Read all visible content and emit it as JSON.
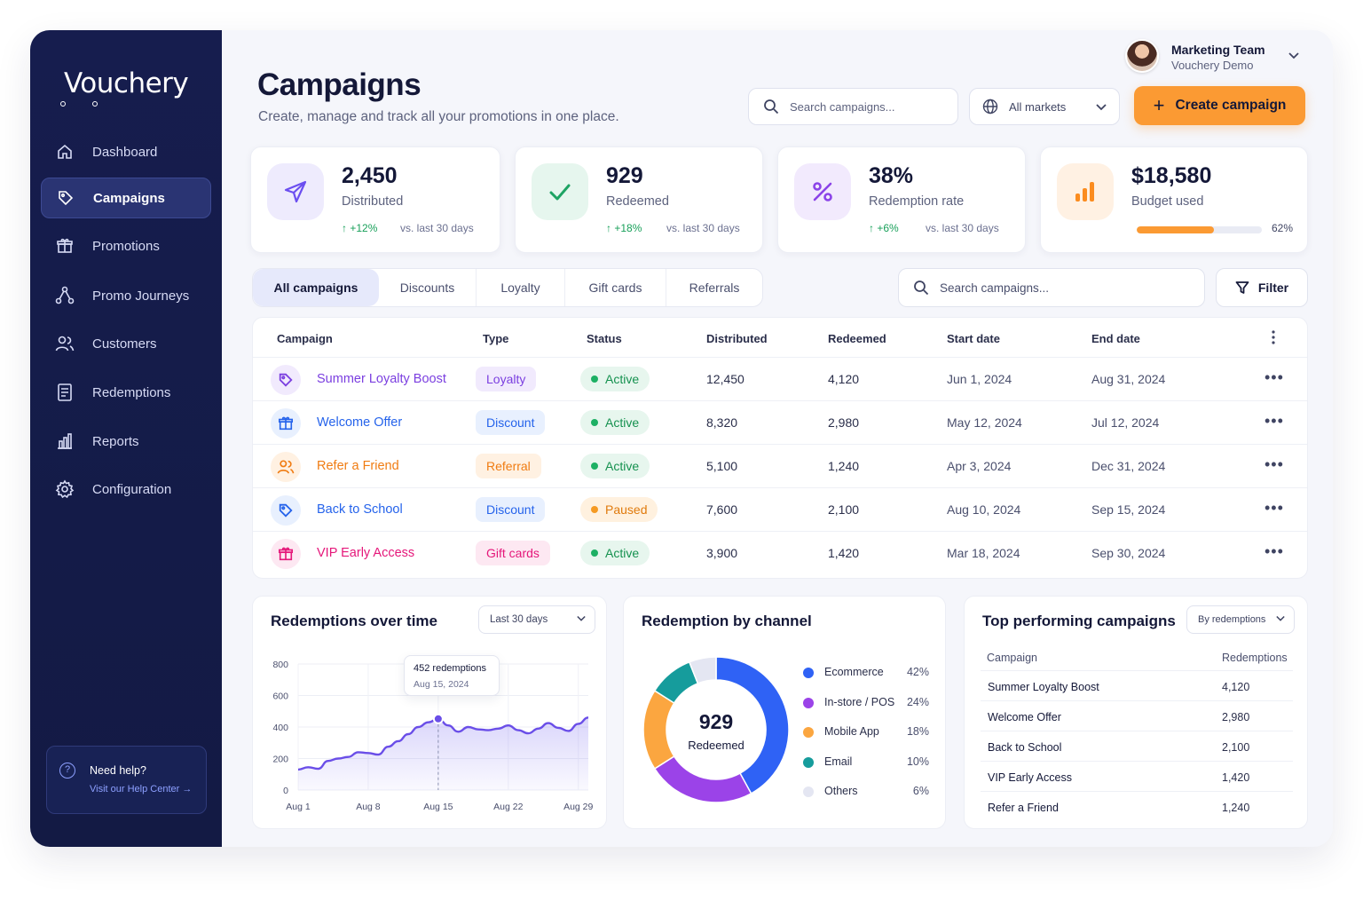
{
  "brand": {
    "name": "Vouchery"
  },
  "sidebar": {
    "items": [
      {
        "label": "Dashboard",
        "icon": "home-icon"
      },
      {
        "label": "Campaigns",
        "icon": "tag-icon",
        "active": true
      },
      {
        "label": "Promotions",
        "icon": "gift-icon"
      },
      {
        "label": "Promo Journeys",
        "icon": "journey-icon"
      },
      {
        "label": "Customers",
        "icon": "users-icon"
      },
      {
        "label": "Redemptions",
        "icon": "receipt-icon"
      },
      {
        "label": "Reports",
        "icon": "bar-chart-icon"
      },
      {
        "label": "Configuration",
        "icon": "gear-icon"
      }
    ],
    "help": {
      "title": "Need help?",
      "link": "Visit our Help Center →"
    }
  },
  "header": {
    "title": "Campaigns",
    "subtitle": "Create, manage and track all your promotions in one place.",
    "search_placeholder": "Search campaigns...",
    "markets": "All markets",
    "create_label": "Create campaign",
    "user": {
      "name": "Marketing Team",
      "org": "Vouchery Demo"
    }
  },
  "kpis": [
    {
      "value": "2,450",
      "label": "Distributed",
      "delta": "+12%",
      "vs": "vs. last 30 days",
      "icon": "send-icon",
      "color": "#6b4ef0",
      "bg": "#eeebfd"
    },
    {
      "value": "929",
      "label": "Redeemed",
      "delta": "+18%",
      "vs": "vs. last 30 days",
      "icon": "check-icon",
      "color": "#1ea363",
      "bg": "#e6f6ee"
    },
    {
      "value": "38%",
      "label": "Redemption rate",
      "delta": "+6%",
      "vs": "vs. last 30 days",
      "icon": "percent-icon",
      "color": "#8b43e8",
      "bg": "#f2eafd"
    },
    {
      "value": "$18,580",
      "label": "Budget used",
      "progress": 0.62,
      "pct": "62%",
      "icon": "bars-icon",
      "color": "#fb8c1f",
      "bg": "#fff1e3"
    }
  ],
  "tabs": [
    "All campaigns",
    "Discounts",
    "Loyalty",
    "Gift cards",
    "Referrals"
  ],
  "table_search_placeholder": "Search campaigns...",
  "filter_label": "Filter",
  "table": {
    "columns": [
      "Campaign",
      "Type",
      "Status",
      "Distributed",
      "Redeemed",
      "Start date",
      "End date"
    ],
    "rows": [
      {
        "name": "Summer Loyalty Boost",
        "type": "Loyalty",
        "status": "Active",
        "distributed": "12,450",
        "redeemed": "4,120",
        "start": "Jun 1, 2024",
        "end": "Aug 31, 2024",
        "icon": "tag-icon",
        "color": "#7b3fe0",
        "tint": "#f1eafd"
      },
      {
        "name": "Welcome Offer",
        "type": "Discount",
        "status": "Active",
        "distributed": "8,320",
        "redeemed": "2,980",
        "start": "May 12, 2024",
        "end": "Jul 12, 2024",
        "icon": "gift-icon",
        "color": "#2563eb",
        "tint": "#e8f0fe"
      },
      {
        "name": "Refer a Friend",
        "type": "Referral",
        "status": "Active",
        "distributed": "5,100",
        "redeemed": "1,240",
        "start": "Apr 3, 2024",
        "end": "Dec 31, 2024",
        "icon": "users-icon",
        "color": "#f07c12",
        "tint": "#fff1e2"
      },
      {
        "name": "Back to School",
        "type": "Discount",
        "status": "Paused",
        "distributed": "7,600",
        "redeemed": "2,100",
        "start": "Aug 10, 2024",
        "end": "Sep 15, 2024",
        "icon": "tag-icon",
        "color": "#2563eb",
        "tint": "#e8f0fe"
      },
      {
        "name": "VIP Early Access",
        "type": "Gift cards",
        "status": "Active",
        "distributed": "3,900",
        "redeemed": "1,420",
        "start": "Mar 18, 2024",
        "end": "Sep 30, 2024",
        "icon": "gift-icon",
        "color": "#e5177a",
        "tint": "#fde8f2"
      }
    ]
  },
  "status_colors": {
    "Active": {
      "fg": "#15914f",
      "bg": "#e7f6ee",
      "dot": "#1db064"
    },
    "Paused": {
      "fg": "#e07a0c",
      "bg": "#fff1df",
      "dot": "#f59a23"
    }
  },
  "redemptions_over_time": {
    "title": "Redemptions over time",
    "range": "Last 30 days",
    "tooltip": {
      "value": "452 redemptions",
      "date": "Aug 15, 2024"
    }
  },
  "redemption_by_channel": {
    "title": "Redemption by channel",
    "center_value": "929",
    "center_label": "Redeemed"
  },
  "top_campaigns": {
    "title": "Top performing campaigns",
    "sort": "By redemptions",
    "columns": [
      "Campaign",
      "Redemptions"
    ],
    "rows": [
      {
        "name": "Summer Loyalty Boost",
        "value": "4,120"
      },
      {
        "name": "Welcome Offer",
        "value": "2,980"
      },
      {
        "name": "Back to School",
        "value": "2,100"
      },
      {
        "name": "VIP Early Access",
        "value": "1,420"
      },
      {
        "name": "Refer a Friend",
        "value": "1,240"
      }
    ]
  },
  "chart_data": [
    {
      "type": "area",
      "title": "Redemptions over time",
      "x": [
        1,
        2,
        3,
        4,
        5,
        6,
        7,
        8,
        9,
        10,
        11,
        12,
        13,
        14,
        15,
        16,
        17,
        18,
        19,
        20,
        21,
        22,
        23,
        24,
        25,
        26,
        27,
        28,
        29,
        30
      ],
      "x_tick_labels": [
        "Aug 1",
        "Aug 8",
        "Aug 15",
        "Aug 22",
        "Aug 29"
      ],
      "x_tick_values": [
        1,
        8,
        15,
        22,
        29
      ],
      "y_ticks": [
        0,
        200,
        400,
        600,
        800
      ],
      "ylim": [
        0,
        800
      ],
      "series": [
        {
          "values": [
            130,
            145,
            135,
            185,
            200,
            210,
            240,
            235,
            225,
            275,
            310,
            355,
            400,
            430,
            452,
            410,
            370,
            400,
            385,
            380,
            390,
            410,
            380,
            360,
            390,
            425,
            395,
            375,
            420,
            460
          ]
        }
      ],
      "highlight": {
        "x": 15,
        "y": 452
      },
      "grid": true
    },
    {
      "type": "pie",
      "title": "Redemption by channel",
      "categories": [
        "Ecommerce",
        "In-store / POS",
        "Mobile App",
        "Email",
        "Others"
      ],
      "values": [
        42,
        24,
        18,
        10,
        6
      ],
      "labels": [
        "42%",
        "24%",
        "18%",
        "10%",
        "6%"
      ],
      "colors": [
        "#2f62f5",
        "#9b43e8",
        "#fba640",
        "#169c9c",
        "#e4e6f2"
      ]
    }
  ]
}
